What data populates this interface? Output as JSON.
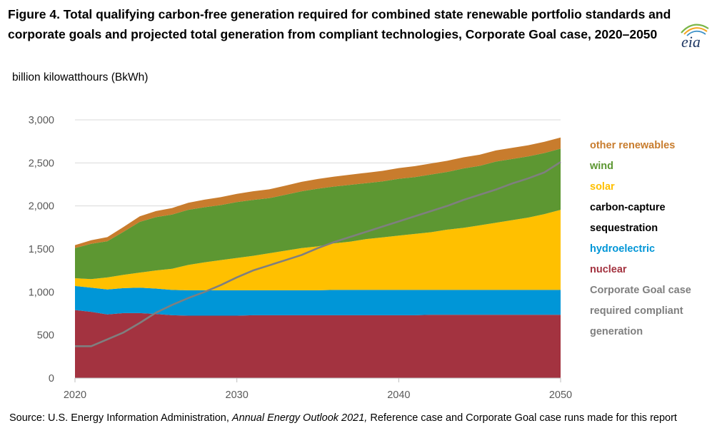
{
  "title": "Figure 4. Total qualifying carbon-free generation required for combined state renewable portfolio standards and corporate goals and projected total generation from compliant technologies, Corporate Goal case, 2020–2050",
  "logo_text": "eia",
  "unit_label": "billion kilowatthours (BkWh)",
  "source": {
    "prefix": "Source: U.S. Energy Information Administration, ",
    "italic": "Annual Energy Outlook 2021,",
    "suffix": " Reference case and Corporate Goal case runs made for this report"
  },
  "chart_data": {
    "type": "area",
    "stacked": true,
    "ylabel": "billion kilowatthours (BkWh)",
    "xlim": [
      2020,
      2050
    ],
    "ylim": [
      0,
      3000
    ],
    "x_ticks": [
      "2020",
      "2030",
      "2040",
      "2050"
    ],
    "y_ticks": [
      "0",
      "500",
      "1,000",
      "1,500",
      "2,000",
      "2,500",
      "3,000"
    ],
    "y_tick_values": [
      0,
      500,
      1000,
      1500,
      2000,
      2500,
      3000
    ],
    "grid": "horizontal",
    "legend_position": "right",
    "x": [
      2020,
      2021,
      2022,
      2023,
      2024,
      2025,
      2026,
      2027,
      2028,
      2029,
      2030,
      2031,
      2032,
      2033,
      2034,
      2035,
      2036,
      2037,
      2038,
      2039,
      2040,
      2041,
      2042,
      2043,
      2044,
      2045,
      2046,
      2047,
      2048,
      2049,
      2050
    ],
    "series": [
      {
        "name": "nuclear",
        "color": "#A33340",
        "values": [
          790,
          770,
          740,
          755,
          755,
          745,
          730,
          725,
          725,
          725,
          725,
          730,
          730,
          730,
          730,
          730,
          730,
          730,
          730,
          730,
          730,
          730,
          735,
          735,
          735,
          735,
          735,
          735,
          735,
          735,
          735
        ]
      },
      {
        "name": "hydroelectric",
        "color": "#0096D7",
        "values": [
          280,
          280,
          290,
          290,
          295,
          295,
          295,
          295,
          295,
          295,
          295,
          290,
          290,
          290,
          290,
          290,
          295,
          295,
          295,
          295,
          295,
          295,
          290,
          290,
          290,
          290,
          290,
          290,
          290,
          290,
          290
        ]
      },
      {
        "name": "solar",
        "color": "#FFC000",
        "values": [
          90,
          100,
          140,
          155,
          175,
          210,
          245,
          295,
          325,
          350,
          375,
          400,
          430,
          460,
          490,
          510,
          540,
          560,
          590,
          610,
          630,
          650,
          670,
          700,
          720,
          750,
          780,
          810,
          840,
          880,
          930
        ]
      },
      {
        "name": "wind",
        "color": "#5D9732",
        "values": [
          350,
          410,
          420,
          500,
          590,
          620,
          630,
          640,
          640,
          640,
          650,
          650,
          640,
          650,
          660,
          670,
          660,
          660,
          650,
          650,
          660,
          660,
          670,
          670,
          690,
          690,
          710,
          710,
          710,
          710,
          710
        ]
      },
      {
        "name": "other renewables",
        "color": "#C87C2D",
        "values": [
          35,
          42,
          48,
          56,
          64,
          70,
          76,
          82,
          88,
          92,
          95,
          100,
          103,
          106,
          110,
          113,
          115,
          118,
          120,
          122,
          125,
          127,
          128,
          130,
          130,
          130,
          130,
          130,
          130,
          130,
          130
        ]
      }
    ],
    "line_series": {
      "name": "Corporate Goal case required compliant generation",
      "color": "#7F7F7F",
      "values": [
        370,
        370,
        450,
        530,
        640,
        760,
        850,
        930,
        1000,
        1080,
        1170,
        1250,
        1310,
        1370,
        1430,
        1510,
        1580,
        1640,
        1700,
        1760,
        1820,
        1880,
        1940,
        2000,
        2070,
        2130,
        2190,
        2260,
        2320,
        2390,
        2510
      ]
    }
  },
  "legend": {
    "items": [
      {
        "label": "other renewables",
        "color": "#C87C2D"
      },
      {
        "label": "wind",
        "color": "#5D9732"
      },
      {
        "label": "solar",
        "color": "#FFC000"
      },
      {
        "label": "carbon-capture",
        "color": "#000000"
      },
      {
        "label": "sequestration",
        "color": "#000000"
      },
      {
        "label": "hydroelectric",
        "color": "#0096D7"
      },
      {
        "label": "nuclear",
        "color": "#A33340"
      },
      {
        "label": "Corporate Goal case",
        "color": "#7F7F7F"
      },
      {
        "label": "required compliant",
        "color": "#7F7F7F"
      },
      {
        "label": "generation",
        "color": "#7F7F7F"
      }
    ]
  }
}
